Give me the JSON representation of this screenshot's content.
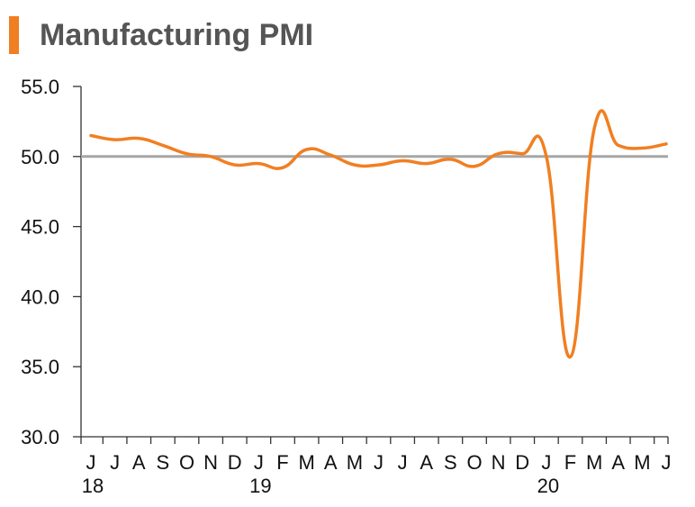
{
  "chart_data": {
    "type": "line",
    "title": "Manufacturing PMI",
    "ylim": [
      30,
      55
    ],
    "yticks": [
      "55.0",
      "50.0",
      "45.0",
      "40.0",
      "35.0",
      "30.0"
    ],
    "ytick_values": [
      55,
      50,
      45,
      40,
      35,
      30
    ],
    "reference_line": 50,
    "x_month_labels": [
      "J",
      "J",
      "A",
      "S",
      "O",
      "N",
      "D",
      "J",
      "F",
      "M",
      "A",
      "M",
      "J",
      "J",
      "A",
      "S",
      "O",
      "N",
      "D",
      "J",
      "F",
      "M",
      "A",
      "M",
      "J"
    ],
    "x_year_labels": [
      {
        "index": 0,
        "label": "18"
      },
      {
        "index": 7,
        "label": "19"
      },
      {
        "index": 19,
        "label": "20"
      }
    ],
    "series": [
      {
        "values": [
          51.5,
          51.2,
          51.3,
          50.8,
          50.2,
          50.0,
          49.4,
          49.5,
          49.2,
          50.5,
          50.1,
          49.4,
          49.4,
          49.7,
          49.5,
          49.8,
          49.3,
          50.2,
          50.2,
          50.0,
          35.7,
          52.0,
          50.8,
          50.6,
          50.9
        ]
      }
    ],
    "colors": {
      "series": "#f07f22",
      "reference": "#a6a6a6",
      "axis": "#333333",
      "title_bar": "#f07f22",
      "title_text": "#555555"
    }
  }
}
